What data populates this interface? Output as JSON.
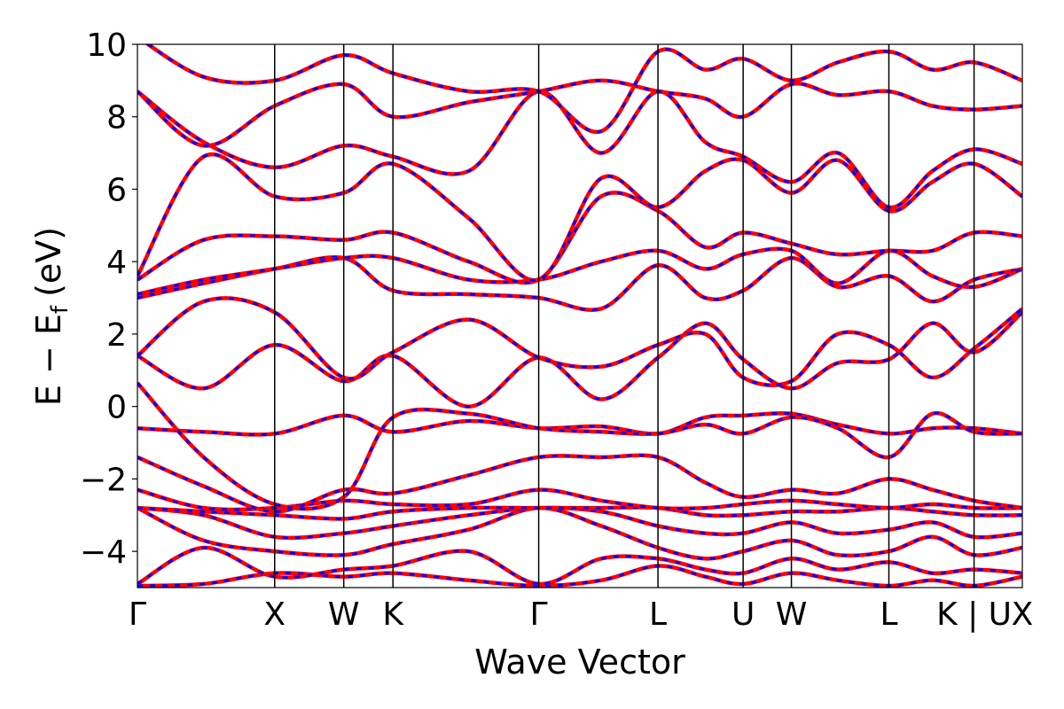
{
  "chart_data": {
    "type": "line",
    "title": "",
    "xlabel": "Wave Vector",
    "ylabel": "E − E",
    "ylabel_subscript": "f",
    "ylabel_unit": "(eV)",
    "ylim": [
      -5,
      10
    ],
    "yticks": [
      10,
      8,
      6,
      4,
      2,
      0,
      -2,
      -4
    ],
    "ytick_labels": [
      "10",
      "8",
      "6",
      "4",
      "2",
      "0",
      "−2",
      "−4"
    ],
    "xlim": [
      0,
      9.35
    ],
    "kpath": [
      {
        "label": "Γ",
        "x": 0.0
      },
      {
        "label": "X",
        "x": 1.45
      },
      {
        "label": "W",
        "x": 2.18
      },
      {
        "label": "K",
        "x": 2.7
      },
      {
        "label": "Γ",
        "x": 4.24
      },
      {
        "label": "L",
        "x": 5.5
      },
      {
        "label": "U",
        "x": 6.4
      },
      {
        "label": "W",
        "x": 6.91
      },
      {
        "label": "L",
        "x": 7.94
      },
      {
        "label": "K | U",
        "x": 8.84
      },
      {
        "label": "X",
        "x": 9.35
      }
    ],
    "grid": false,
    "series_colors": {
      "solid": "#ff0000",
      "dashed": "#0000ff"
    },
    "series": [
      {
        "name": "",
        "style": "solid",
        "color": "#ff0000"
      },
      {
        "name": "",
        "style": "dashed",
        "color": "#0000ff"
      }
    ],
    "bands": [
      {
        "x": [
          0.0,
          0.7,
          1.45,
          2.18,
          2.7,
          3.5,
          4.24,
          4.9,
          5.5,
          6.0,
          6.4,
          6.91,
          7.4,
          7.94,
          8.4,
          8.84,
          9.35
        ],
        "y": [
          -4.95,
          -4.9,
          -4.6,
          -4.7,
          -4.6,
          -4.8,
          -4.95,
          -4.8,
          -4.4,
          -4.7,
          -4.9,
          -4.6,
          -4.8,
          -4.95,
          -4.8,
          -4.95,
          -4.7
        ]
      },
      {
        "x": [
          0.0,
          0.7,
          1.45,
          2.18,
          2.7,
          3.5,
          4.24,
          4.9,
          5.5,
          6.0,
          6.4,
          6.91,
          7.4,
          7.94,
          8.4,
          8.84,
          9.35
        ],
        "y": [
          -4.9,
          -3.9,
          -4.7,
          -4.5,
          -4.4,
          -4.0,
          -4.9,
          -4.2,
          -4.2,
          -4.5,
          -4.6,
          -4.2,
          -4.5,
          -4.3,
          -4.6,
          -4.5,
          -4.6
        ]
      },
      {
        "x": [
          0.0,
          0.7,
          1.45,
          2.18,
          2.7,
          3.5,
          4.24,
          4.9,
          5.5,
          6.0,
          6.4,
          6.91,
          7.4,
          7.94,
          8.4,
          8.84,
          9.35
        ],
        "y": [
          -2.8,
          -3.7,
          -4.0,
          -4.1,
          -3.8,
          -3.4,
          -2.8,
          -3.3,
          -3.9,
          -4.2,
          -4.0,
          -3.7,
          -4.1,
          -4.0,
          -3.6,
          -4.1,
          -3.9
        ]
      },
      {
        "x": [
          0.0,
          0.7,
          1.45,
          2.18,
          2.7,
          3.5,
          4.24,
          4.9,
          5.5,
          6.0,
          6.4,
          6.91,
          7.4,
          7.94,
          8.4,
          8.84,
          9.35
        ],
        "y": [
          -2.8,
          -3.0,
          -3.6,
          -3.5,
          -3.3,
          -3.0,
          -2.8,
          -2.9,
          -3.3,
          -3.5,
          -3.5,
          -3.2,
          -3.5,
          -3.4,
          -3.2,
          -3.6,
          -3.5
        ]
      },
      {
        "x": [
          0.0,
          0.7,
          1.45,
          2.18,
          2.7,
          3.5,
          4.24,
          4.9,
          5.5,
          6.0,
          6.4,
          6.91,
          7.4,
          7.94,
          8.4,
          8.84,
          9.35
        ],
        "y": [
          -2.8,
          -2.9,
          -3.0,
          -3.1,
          -2.9,
          -2.8,
          -2.8,
          -2.8,
          -2.8,
          -3.0,
          -3.0,
          -2.9,
          -2.9,
          -2.8,
          -2.9,
          -3.0,
          -3.0
        ]
      },
      {
        "x": [
          0.0,
          0.7,
          1.45,
          2.18,
          2.7,
          3.5,
          4.24,
          4.9,
          5.5,
          6.0,
          6.4,
          6.91,
          7.4,
          7.94,
          8.4,
          8.84,
          9.35
        ],
        "y": [
          -2.3,
          -2.8,
          -2.8,
          -2.6,
          -2.7,
          -2.7,
          -2.3,
          -2.6,
          -2.8,
          -2.8,
          -2.7,
          -2.6,
          -2.7,
          -2.8,
          -2.7,
          -2.8,
          -2.8
        ]
      },
      {
        "x": [
          0.0,
          0.7,
          1.45,
          2.18,
          2.7,
          3.5,
          4.24,
          4.9,
          5.5,
          6.0,
          6.4,
          6.91,
          7.4,
          7.94,
          8.4,
          8.84,
          9.35
        ],
        "y": [
          -1.4,
          -2.2,
          -2.9,
          -2.3,
          -2.4,
          -1.9,
          -1.4,
          -1.4,
          -1.4,
          -2.1,
          -2.5,
          -2.3,
          -2.4,
          -2.0,
          -2.3,
          -2.6,
          -2.8
        ]
      },
      {
        "x": [
          0.0,
          0.7,
          1.45,
          2.18,
          2.7,
          3.5,
          4.24,
          4.9,
          5.5,
          6.0,
          6.4,
          6.91,
          7.4,
          7.94,
          8.4,
          8.84,
          9.35
        ],
        "y": [
          -0.6,
          -0.7,
          -0.75,
          -0.25,
          -0.7,
          -0.4,
          -0.6,
          -0.55,
          -0.75,
          -0.3,
          -0.25,
          -0.2,
          -0.5,
          -0.75,
          -0.6,
          -0.6,
          -0.75
        ]
      },
      {
        "x": [
          0.0,
          0.7,
          1.45,
          2.18,
          2.7,
          3.5,
          4.24,
          4.9,
          5.5,
          6.0,
          6.4,
          6.91,
          7.4,
          7.94,
          8.4,
          8.84,
          9.35
        ],
        "y": [
          0.65,
          -1.4,
          -2.7,
          -2.5,
          -0.3,
          -0.2,
          -0.6,
          -0.7,
          -0.75,
          -0.5,
          -0.75,
          -0.3,
          -0.6,
          -1.4,
          -0.2,
          -0.7,
          -0.75
        ]
      },
      {
        "x": [
          0.0,
          0.7,
          1.45,
          2.18,
          2.7,
          3.5,
          4.24,
          4.9,
          5.5,
          6.0,
          6.4,
          6.91,
          7.4,
          7.94,
          8.4,
          8.84,
          9.35
        ],
        "y": [
          1.4,
          0.5,
          1.7,
          0.7,
          1.4,
          0.0,
          1.35,
          0.2,
          1.35,
          2.3,
          1.3,
          0.5,
          1.2,
          1.3,
          2.3,
          1.5,
          2.6
        ]
      },
      {
        "x": [
          0.0,
          0.7,
          1.45,
          2.18,
          2.7,
          3.5,
          4.24,
          4.9,
          5.5,
          6.0,
          6.4,
          6.91,
          7.4,
          7.94,
          8.4,
          8.84,
          9.35
        ],
        "y": [
          1.4,
          2.9,
          2.6,
          0.8,
          1.5,
          2.4,
          1.35,
          1.1,
          1.7,
          2.0,
          0.8,
          0.7,
          2.0,
          1.7,
          0.8,
          1.6,
          2.7
        ]
      },
      {
        "x": [
          0.0,
          0.7,
          1.45,
          2.18,
          2.7,
          3.5,
          4.24,
          4.9,
          5.5,
          6.0,
          6.4,
          6.91,
          7.4,
          7.94,
          8.4,
          8.84,
          9.35
        ],
        "y": [
          3.0,
          3.4,
          3.8,
          4.1,
          3.2,
          3.1,
          3.0,
          2.7,
          3.9,
          3.0,
          3.2,
          4.1,
          3.3,
          3.6,
          2.9,
          3.5,
          3.8
        ]
      },
      {
        "x": [
          0.0,
          0.7,
          1.45,
          2.18,
          2.7,
          3.5,
          4.24,
          4.9,
          5.5,
          6.0,
          6.4,
          6.91,
          7.4,
          7.94,
          8.4,
          8.84,
          9.35
        ],
        "y": [
          3.1,
          3.5,
          3.8,
          4.1,
          4.1,
          3.5,
          3.5,
          4.0,
          4.3,
          3.8,
          4.2,
          4.3,
          3.4,
          4.3,
          3.6,
          3.3,
          3.8
        ]
      },
      {
        "x": [
          0.0,
          0.7,
          1.45,
          2.18,
          2.7,
          3.5,
          4.24,
          4.9,
          5.5,
          6.0,
          6.4,
          6.91,
          7.4,
          7.94,
          8.4,
          8.84,
          9.35
        ],
        "y": [
          3.5,
          4.6,
          4.7,
          4.6,
          4.8,
          4.0,
          3.5,
          5.8,
          5.4,
          4.4,
          4.8,
          4.5,
          4.2,
          4.3,
          4.3,
          4.8,
          4.7
        ]
      },
      {
        "x": [
          0.0,
          0.7,
          1.45,
          2.18,
          2.7,
          3.5,
          4.24,
          4.9,
          5.5,
          6.0,
          6.4,
          6.91,
          7.4,
          7.94,
          8.4,
          8.84,
          9.35
        ],
        "y": [
          3.6,
          6.9,
          5.8,
          5.9,
          6.7,
          5.2,
          3.5,
          6.3,
          5.5,
          6.5,
          6.8,
          5.9,
          6.8,
          5.4,
          6.2,
          6.7,
          5.8
        ]
      },
      {
        "x": [
          0.0,
          0.7,
          1.45,
          2.18,
          2.7,
          3.5,
          4.24,
          4.9,
          5.5,
          6.0,
          6.4,
          6.91,
          7.4,
          7.94,
          8.4,
          8.84,
          9.35
        ],
        "y": [
          8.7,
          7.3,
          6.6,
          7.2,
          6.9,
          6.5,
          8.7,
          7.0,
          8.7,
          7.3,
          6.9,
          6.2,
          7.0,
          5.5,
          6.5,
          7.1,
          6.7
        ]
      },
      {
        "x": [
          0.0,
          0.7,
          1.45,
          2.18,
          2.7,
          3.5,
          4.24,
          4.9,
          5.5,
          6.0,
          6.4,
          6.91,
          7.4,
          7.94,
          8.4,
          8.84,
          9.35
        ],
        "y": [
          8.7,
          7.2,
          8.3,
          8.9,
          8.0,
          8.4,
          8.7,
          9.0,
          8.7,
          8.5,
          8.0,
          8.9,
          8.6,
          8.7,
          8.3,
          8.2,
          8.3
        ]
      },
      {
        "x": [
          0.0,
          0.7,
          1.45,
          2.18,
          2.7,
          3.5,
          4.24,
          4.9,
          5.5,
          6.0,
          6.4,
          6.91,
          7.4,
          7.94,
          8.4,
          8.84,
          9.35
        ],
        "y": [
          10.2,
          9.1,
          9.0,
          9.7,
          9.2,
          8.7,
          8.7,
          7.6,
          9.8,
          9.3,
          9.6,
          9.0,
          9.5,
          9.8,
          9.3,
          9.5,
          9.0
        ]
      }
    ]
  }
}
